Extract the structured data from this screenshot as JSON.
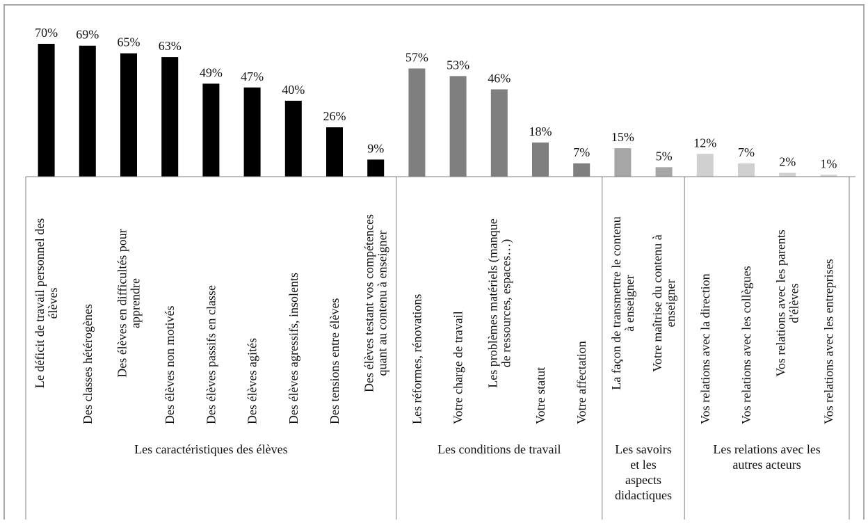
{
  "chart_data": {
    "type": "bar",
    "ylim": [
      0,
      75
    ],
    "grid": false,
    "legend": "none",
    "groups": [
      {
        "name": "Les caractéristiques des élèves",
        "name_lines": [
          "Les caractéristiques des élèves"
        ],
        "color": "#000000",
        "items": [
          {
            "value": 70,
            "label": "70%",
            "category_lines": [
              "Le déficit de travail personnel des",
              "élèves"
            ]
          },
          {
            "value": 69,
            "label": "69%",
            "category_lines": [
              "Des classes hétérogènes"
            ]
          },
          {
            "value": 65,
            "label": "65%",
            "category_lines": [
              "Des élèves en difficultés pour",
              "apprendre"
            ]
          },
          {
            "value": 63,
            "label": "63%",
            "category_lines": [
              "Des élèves non motivés"
            ]
          },
          {
            "value": 49,
            "label": "49%",
            "category_lines": [
              "Des élèves passifs en classe"
            ]
          },
          {
            "value": 47,
            "label": "47%",
            "category_lines": [
              "Des élèves agités"
            ]
          },
          {
            "value": 40,
            "label": "40%",
            "category_lines": [
              "Des élèves agressifs, insolents"
            ]
          },
          {
            "value": 26,
            "label": "26%",
            "category_lines": [
              "Des tensions entre élèves"
            ]
          },
          {
            "value": 9,
            "label": "9%",
            "category_lines": [
              "Des élèves testant vos compétences",
              "quant au contenu à enseigner"
            ]
          }
        ]
      },
      {
        "name": "Les conditions de travail",
        "name_lines": [
          "Les conditions de travail"
        ],
        "color": "#7f7f7f",
        "items": [
          {
            "value": 57,
            "label": "57%",
            "category_lines": [
              "Les réformes, rénovations"
            ]
          },
          {
            "value": 53,
            "label": "53%",
            "category_lines": [
              "Votre charge de travail"
            ]
          },
          {
            "value": 46,
            "label": "46%",
            "category_lines": [
              "Les problèmes matériels (manque",
              "de ressources, espaces…)"
            ]
          },
          {
            "value": 18,
            "label": "18%",
            "category_lines": [
              "Votre statut"
            ]
          },
          {
            "value": 7,
            "label": "7%",
            "category_lines": [
              "Votre affectation"
            ]
          }
        ]
      },
      {
        "name": "Les savoirs et les aspects didactiques",
        "name_lines": [
          "Les savoirs",
          "et les",
          "aspects",
          "didactiques"
        ],
        "color": "#a6a6a6",
        "items": [
          {
            "value": 15,
            "label": "15%",
            "category_lines": [
              "La façon de transmettre le contenu",
              "à enseigner"
            ]
          },
          {
            "value": 5,
            "label": "5%",
            "category_lines": [
              "Votre maîtrise du contenu à",
              "enseigner"
            ]
          }
        ]
      },
      {
        "name": "Les relations avec les autres acteurs",
        "name_lines": [
          "Les relations avec les",
          "autres acteurs"
        ],
        "color": "#d0d0d0",
        "items": [
          {
            "value": 12,
            "label": "12%",
            "category_lines": [
              "Vos relations avec la direction"
            ]
          },
          {
            "value": 7,
            "label": "7%",
            "category_lines": [
              "Vos relations avec les collègues"
            ]
          },
          {
            "value": 2,
            "label": "2%",
            "category_lines": [
              "Vos relations avec les parents",
              "d'élèves"
            ]
          },
          {
            "value": 1,
            "label": "1%",
            "category_lines": [
              "Vos relations avec les entreprises"
            ]
          }
        ]
      }
    ]
  }
}
